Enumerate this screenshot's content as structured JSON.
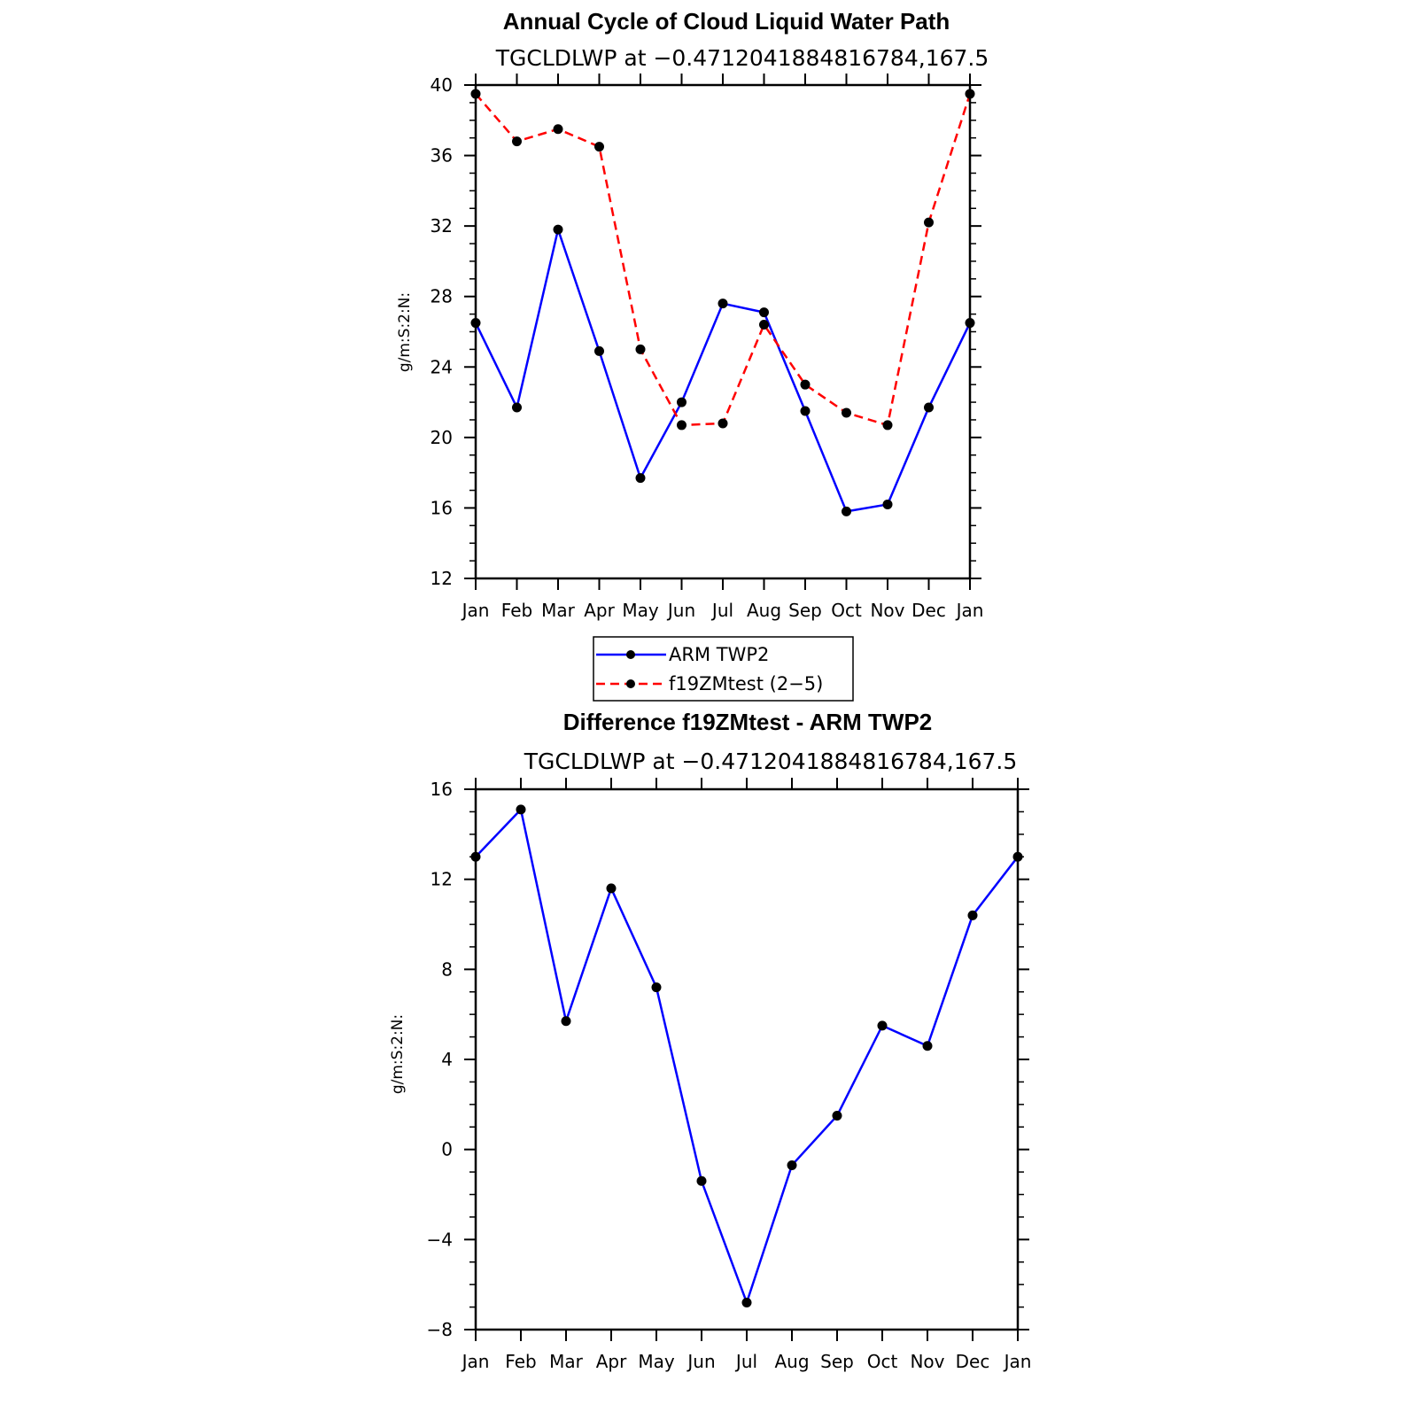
{
  "chart_data": [
    {
      "type": "line",
      "title": "Annual Cycle of Cloud Liquid Water Path",
      "subtitle": "TGCLDLWP at −0.4712041884816784,167.5",
      "xlabel": "",
      "ylabel": "g/m:S:2:N:",
      "categories": [
        "Jan",
        "Feb",
        "Mar",
        "Apr",
        "May",
        "Jun",
        "Jul",
        "Aug",
        "Sep",
        "Oct",
        "Nov",
        "Dec",
        "Jan"
      ],
      "ylim": [
        12,
        40
      ],
      "yticks": [
        12,
        16,
        20,
        24,
        28,
        32,
        36,
        40
      ],
      "ytick_labels": [
        "12",
        "16",
        "20",
        "24",
        "28",
        "32",
        "36",
        "40"
      ],
      "series": [
        {
          "name": "ARM TWP2",
          "color": "#0000ff",
          "dash": "solid",
          "values": [
            26.5,
            21.7,
            31.8,
            24.9,
            17.7,
            22.0,
            27.6,
            27.1,
            21.5,
            15.8,
            16.2,
            21.7,
            26.5
          ]
        },
        {
          "name": "f19ZMtest (2−5)",
          "color": "#ff0000",
          "dash": "dashed",
          "values": [
            39.5,
            36.8,
            37.5,
            36.5,
            25.0,
            20.7,
            20.8,
            26.4,
            23.0,
            21.4,
            20.7,
            32.2,
            39.5
          ]
        }
      ],
      "legend": {
        "placement": "bottom"
      }
    },
    {
      "type": "line",
      "title": "Difference f19ZMtest - ARM TWP2",
      "subtitle": "TGCLDLWP at −0.4712041884816784,167.5",
      "xlabel": "",
      "ylabel": "g/m:S:2:N:",
      "categories": [
        "Jan",
        "Feb",
        "Mar",
        "Apr",
        "May",
        "Jun",
        "Jul",
        "Aug",
        "Sep",
        "Oct",
        "Nov",
        "Dec",
        "Jan"
      ],
      "ylim": [
        -8,
        16
      ],
      "yticks": [
        -8,
        -4,
        0,
        4,
        8,
        12,
        16
      ],
      "ytick_labels": [
        "−8",
        "−4",
        "0",
        "4",
        "8",
        "12",
        "16"
      ],
      "series": [
        {
          "name": "Difference",
          "color": "#0000ff",
          "dash": "solid",
          "values": [
            13.0,
            15.1,
            5.7,
            11.6,
            7.2,
            -1.4,
            -6.8,
            -0.7,
            1.5,
            5.5,
            4.6,
            10.4,
            13.0
          ]
        }
      ]
    }
  ]
}
